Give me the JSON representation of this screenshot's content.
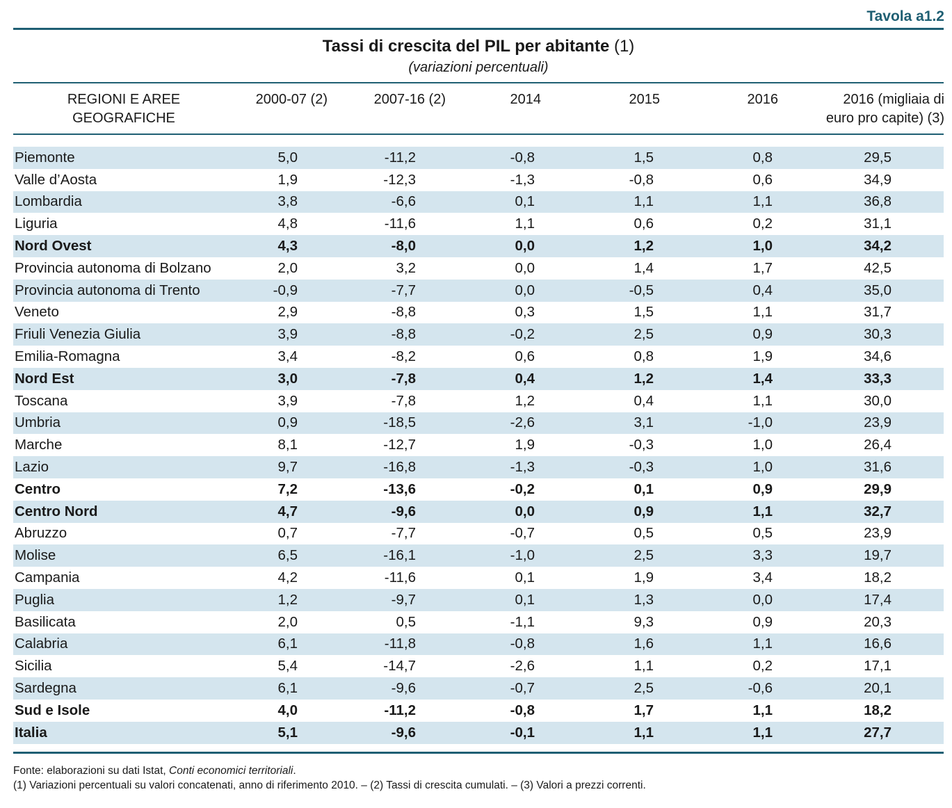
{
  "header": {
    "tavola": "Tavola a1.2",
    "title_bold": "Tassi di crescita del PIL per abitante",
    "title_note": "(1)",
    "subtitle": "(variazioni percentuali)"
  },
  "columns": {
    "region": [
      "REGIONI E AREE",
      "GEOGRAFICHE"
    ],
    "c1": "2000-07 (2)",
    "c2": "2007-16 (2)",
    "c3": "2014",
    "c4": "2015",
    "c5": "2016",
    "c6": [
      "2016 (migliaia di",
      "euro pro capite) (3)"
    ]
  },
  "rows": [
    {
      "name": "Piemonte",
      "v": [
        "5,0",
        "-11,2",
        "-0,8",
        "1,5",
        "0,8",
        "29,5"
      ],
      "bold": false
    },
    {
      "name": "Valle d’Aosta",
      "v": [
        "1,9",
        "-12,3",
        "-1,3",
        "-0,8",
        "0,6",
        "34,9"
      ],
      "bold": false
    },
    {
      "name": "Lombardia",
      "v": [
        "3,8",
        "-6,6",
        "0,1",
        "1,1",
        "1,1",
        "36,8"
      ],
      "bold": false
    },
    {
      "name": "Liguria",
      "v": [
        "4,8",
        "-11,6",
        "1,1",
        "0,6",
        "0,2",
        "31,1"
      ],
      "bold": false
    },
    {
      "name": "Nord Ovest",
      "v": [
        "4,3",
        "-8,0",
        "0,0",
        "1,2",
        "1,0",
        "34,2"
      ],
      "bold": true
    },
    {
      "name": "Provincia autonoma di Bolzano",
      "v": [
        "2,0",
        "3,2",
        "0,0",
        "1,4",
        "1,7",
        "42,5"
      ],
      "bold": false
    },
    {
      "name": "Provincia autonoma di Trento",
      "v": [
        "-0,9",
        "-7,7",
        "0,0",
        "-0,5",
        "0,4",
        "35,0"
      ],
      "bold": false
    },
    {
      "name": "Veneto",
      "v": [
        "2,9",
        "-8,8",
        "0,3",
        "1,5",
        "1,1",
        "31,7"
      ],
      "bold": false
    },
    {
      "name": "Friuli Venezia Giulia",
      "v": [
        "3,9",
        "-8,8",
        "-0,2",
        "2,5",
        "0,9",
        "30,3"
      ],
      "bold": false
    },
    {
      "name": "Emilia-Romagna",
      "v": [
        "3,4",
        "-8,2",
        "0,6",
        "0,8",
        "1,9",
        "34,6"
      ],
      "bold": false
    },
    {
      "name": "Nord Est",
      "v": [
        "3,0",
        "-7,8",
        "0,4",
        "1,2",
        "1,4",
        "33,3"
      ],
      "bold": true
    },
    {
      "name": "Toscana",
      "v": [
        "3,9",
        "-7,8",
        "1,2",
        "0,4",
        "1,1",
        "30,0"
      ],
      "bold": false
    },
    {
      "name": "Umbria",
      "v": [
        "0,9",
        "-18,5",
        "-2,6",
        "3,1",
        "-1,0",
        "23,9"
      ],
      "bold": false
    },
    {
      "name": "Marche",
      "v": [
        "8,1",
        "-12,7",
        "1,9",
        "-0,3",
        "1,0",
        "26,4"
      ],
      "bold": false
    },
    {
      "name": "Lazio",
      "v": [
        "9,7",
        "-16,8",
        "-1,3",
        "-0,3",
        "1,0",
        "31,6"
      ],
      "bold": false
    },
    {
      "name": "Centro",
      "v": [
        "7,2",
        "-13,6",
        "-0,2",
        "0,1",
        "0,9",
        "29,9"
      ],
      "bold": true
    },
    {
      "name": "Centro Nord",
      "v": [
        "4,7",
        "-9,6",
        "0,0",
        "0,9",
        "1,1",
        "32,7"
      ],
      "bold": true
    },
    {
      "name": "Abruzzo",
      "v": [
        "0,7",
        "-7,7",
        "-0,7",
        "0,5",
        "0,5",
        "23,9"
      ],
      "bold": false
    },
    {
      "name": "Molise",
      "v": [
        "6,5",
        "-16,1",
        "-1,0",
        "2,5",
        "3,3",
        "19,7"
      ],
      "bold": false
    },
    {
      "name": "Campania",
      "v": [
        "4,2",
        "-11,6",
        "0,1",
        "1,9",
        "3,4",
        "18,2"
      ],
      "bold": false
    },
    {
      "name": "Puglia",
      "v": [
        "1,2",
        "-9,7",
        "0,1",
        "1,3",
        "0,0",
        "17,4"
      ],
      "bold": false
    },
    {
      "name": "Basilicata",
      "v": [
        "2,0",
        "0,5",
        "-1,1",
        "9,3",
        "0,9",
        "20,3"
      ],
      "bold": false
    },
    {
      "name": "Calabria",
      "v": [
        "6,1",
        "-11,8",
        "-0,8",
        "1,6",
        "1,1",
        "16,6"
      ],
      "bold": false
    },
    {
      "name": "Sicilia",
      "v": [
        "5,4",
        "-14,7",
        "-2,6",
        "1,1",
        "0,2",
        "17,1"
      ],
      "bold": false
    },
    {
      "name": "Sardegna",
      "v": [
        "6,1",
        "-9,6",
        "-0,7",
        "2,5",
        "-0,6",
        "20,1"
      ],
      "bold": false
    },
    {
      "name": "Sud e Isole",
      "v": [
        "4,0",
        "-11,2",
        "-0,8",
        "1,7",
        "1,1",
        "18,2"
      ],
      "bold": true
    },
    {
      "name": "Italia",
      "v": [
        "5,1",
        "-9,6",
        "-0,1",
        "1,1",
        "1,1",
        "27,7"
      ],
      "bold": true
    }
  ],
  "notes": {
    "source_prefix": "Fonte: elaborazioni su dati Istat, ",
    "source_italic": "Conti economici territoriali",
    "source_suffix": ".",
    "footnotes": "(1) Variazioni percentuali su valori concatenati, anno di riferimento 2010. – (2) Tassi di crescita cumulati. – (3) Valori a prezzi correnti."
  },
  "colors": {
    "accent": "#1f5f73",
    "row_shade": "#d4e5ee"
  }
}
